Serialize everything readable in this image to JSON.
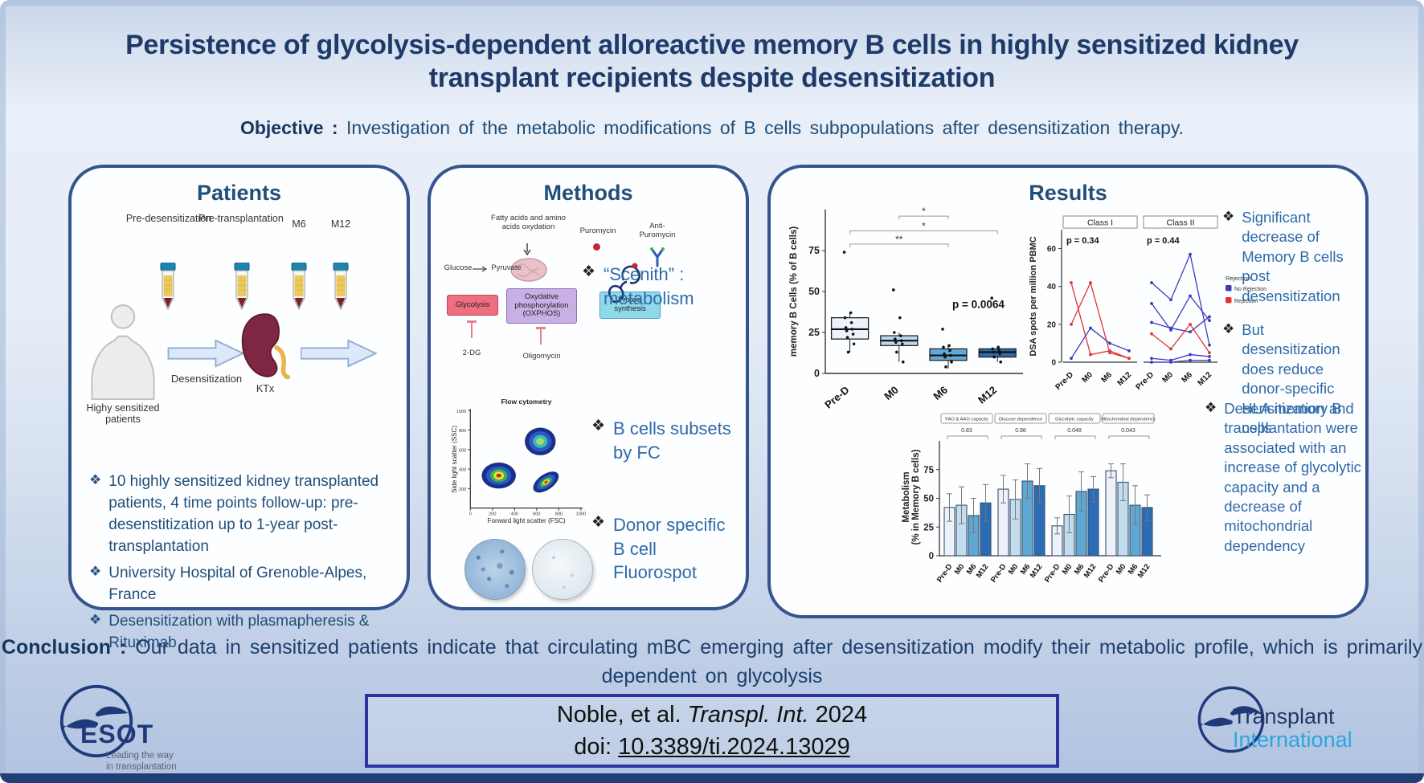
{
  "title": "Persistence of glycolysis-dependent alloreactive memory B cells in highly sensitized kidney transplant recipients despite desensitization",
  "objective": {
    "label": "Objective :",
    "text": "Investigation of the metabolic modifications of B cells subpopulations after desensitization therapy."
  },
  "panels": {
    "patients": {
      "heading": "Patients",
      "timepoints": [
        "Pre-desensitization",
        "Pre-transplantation",
        "M6",
        "M12"
      ],
      "person_label": "Highy sensitized patients",
      "arrow_label": "Desensitization",
      "kidney_label": "KTx",
      "bullets": [
        "10 highly sensitized kidney transplanted patients, 4 time points follow-up: pre-desenstitization up to 1-year post-transplantation",
        "University Hospital of Grenoble-Alpes, France",
        "Desensitization with plasmapheresis & Rituximab"
      ]
    },
    "methods": {
      "heading": "Methods",
      "diagram": {
        "fatty": "Fatty acids and amino acids oxydation",
        "glucose": "Glucose",
        "pyruvate": "Pyruvate",
        "glycolysis": "Glycolysis",
        "oxphos": "Oxydative phosphorylation (OXPHOS)",
        "protein": "Protein synthesis",
        "puromycin": "Puromycin",
        "anti_puromycin": "Anti-Puromycin",
        "dg": "2-DG",
        "oligomycin": "Oligomycin"
      },
      "flow": {
        "title": "Flow cytometry",
        "xlabel": "Forward light scatter (FSC)",
        "ylabel": "Side light scatter (SSC)",
        "xticks": [
          "0",
          "200",
          "400",
          "600",
          "800",
          "1000"
        ],
        "yticks": [
          "200",
          "400",
          "600",
          "800",
          "1000"
        ]
      },
      "bullets": [
        "“Scenith” : metabolism",
        "B cells subsets by FC",
        "Donor specific B cell Fluorospot"
      ]
    },
    "results": {
      "heading": "Results",
      "bullets_top": [
        "Significant decrease of Memory B cells post desensitization",
        "But desensitization does reduce donor-specific HLA memory B cells"
      ],
      "bullets_bottom": [
        "Desensitization and transplantation were associated with an increase of glycolytic capacity and a decrease of mitochondrial dependency"
      ]
    }
  },
  "conclusion": {
    "label": "Conclusion :",
    "text": "Our data in sensitized patients indicate that circulating mBC emerging after desensitization modify their metabolic profile, which is primarily dependent on glycolysis"
  },
  "footer": {
    "citation_authors": "Noble, et al.",
    "citation_journal": "Transpl. Int.",
    "citation_year": "2024",
    "doi_label": "doi:",
    "doi": "10.3389/ti.2024.13029",
    "esot": {
      "name": "ESOT",
      "tagline1": "Leading the way",
      "tagline2": "in transplantation"
    },
    "ti": {
      "line1": "Transplant",
      "line2": "International"
    }
  },
  "chart_data": [
    {
      "type": "boxplot",
      "ylabel": "memory B Cells (% of B cells)",
      "categories": [
        "Pre-D",
        "M0",
        "M6",
        "M12"
      ],
      "yticks": [
        0,
        25,
        50,
        75
      ],
      "ylim": [
        0,
        100
      ],
      "p_value": "p = 0.0064",
      "boxes": [
        {
          "category": "Pre-D",
          "q1": 21,
          "median": 27,
          "q3": 34,
          "lo": 13,
          "hi": 37,
          "fill": "#eef2fb",
          "points": [
            74,
            37,
            34,
            31,
            28,
            27,
            26,
            24,
            22,
            18,
            13
          ]
        },
        {
          "category": "M0",
          "q1": 17,
          "median": 20,
          "q3": 23,
          "lo": 7,
          "hi": 25,
          "fill": "#bcd7ec",
          "points": [
            51,
            34,
            25,
            23,
            21,
            20,
            19,
            18,
            13,
            7
          ]
        },
        {
          "category": "M6",
          "q1": 8,
          "median": 11,
          "q3": 15,
          "lo": 3,
          "hi": 17,
          "fill": "#63a8d6",
          "points": [
            27,
            17,
            16,
            14,
            12,
            11,
            10,
            7,
            4
          ]
        },
        {
          "category": "M12",
          "q1": 10,
          "median": 13,
          "q3": 15,
          "lo": 7,
          "hi": 16,
          "fill": "#2c6cb0",
          "points": [
            46,
            16,
            15,
            14,
            13,
            12,
            10,
            7
          ]
        }
      ],
      "sig_brackets": [
        {
          "from": "M0",
          "to": "M6",
          "label": "*",
          "at": 96
        },
        {
          "from": "Pre-D",
          "to": "M12",
          "label": "*",
          "at": 87
        },
        {
          "from": "Pre-D",
          "to": "M6",
          "label": "**",
          "at": 79
        }
      ]
    },
    {
      "type": "line",
      "ylabel": "DSA spots per million PBMC",
      "x": [
        "Pre-D",
        "M0",
        "M6",
        "M12"
      ],
      "yticks": [
        0,
        20,
        40,
        60
      ],
      "ylim": [
        0,
        70
      ],
      "legend": {
        "title": "Rejection",
        "items": [
          {
            "key": "no_rejection",
            "label": "No Rejection",
            "color": "#3b3bbf"
          },
          {
            "key": "rejection",
            "label": "Rejection",
            "color": "#e23333"
          }
        ]
      },
      "facets": [
        {
          "label": "Class I",
          "p": "p = 0.34",
          "series": [
            {
              "group": "rejection",
              "values": [
                42,
                4,
                6,
                2
              ]
            },
            {
              "group": "rejection",
              "values": [
                20,
                42,
                5,
                2
              ]
            },
            {
              "group": "no_rejection",
              "values": [
                2,
                18,
                10,
                6
              ]
            }
          ]
        },
        {
          "label": "Class II",
          "p": "p = 0.44",
          "series": [
            {
              "group": "no_rejection",
              "values": [
                42,
                33,
                57,
                9
              ]
            },
            {
              "group": "no_rejection",
              "values": [
                31,
                17,
                35,
                22
              ]
            },
            {
              "group": "no_rejection",
              "values": [
                21,
                18,
                16,
                24
              ]
            },
            {
              "group": "rejection",
              "values": [
                15,
                7,
                20,
                5
              ]
            },
            {
              "group": "no_rejection",
              "values": [
                2,
                1,
                4,
                3
              ]
            },
            {
              "group": "no_rejection",
              "values": [
                0,
                0,
                1,
                1
              ]
            }
          ]
        }
      ]
    },
    {
      "type": "bar",
      "ylabel_line1": "Metabolism",
      "ylabel_line2": "(% in Memory B cells)",
      "categories": [
        "Pre-D",
        "M0",
        "M6",
        "M12"
      ],
      "yticks": [
        0,
        25,
        50,
        75
      ],
      "ylim": [
        0,
        100
      ],
      "bar_colors": [
        "#edf2fa",
        "#c3dcee",
        "#5fa8d4",
        "#2a6db6"
      ],
      "groups": [
        {
          "label": "FAO & AAO capacity",
          "p": "0.83",
          "values": [
            42,
            44,
            35,
            46
          ],
          "errors": [
            12,
            16,
            15,
            16
          ]
        },
        {
          "label": "Glucose dependence",
          "p": "0.98",
          "values": [
            58,
            49,
            65,
            61
          ],
          "errors": [
            12,
            17,
            15,
            15
          ]
        },
        {
          "label": "Glycolytic capacity",
          "p": "0.048",
          "values": [
            26,
            36,
            56,
            58
          ],
          "errors": [
            7,
            16,
            17,
            11
          ]
        },
        {
          "label": "Mitochondrial dependency",
          "p": "0.043",
          "values": [
            74,
            64,
            44,
            42
          ],
          "errors": [
            6,
            16,
            17,
            11
          ]
        }
      ]
    }
  ]
}
